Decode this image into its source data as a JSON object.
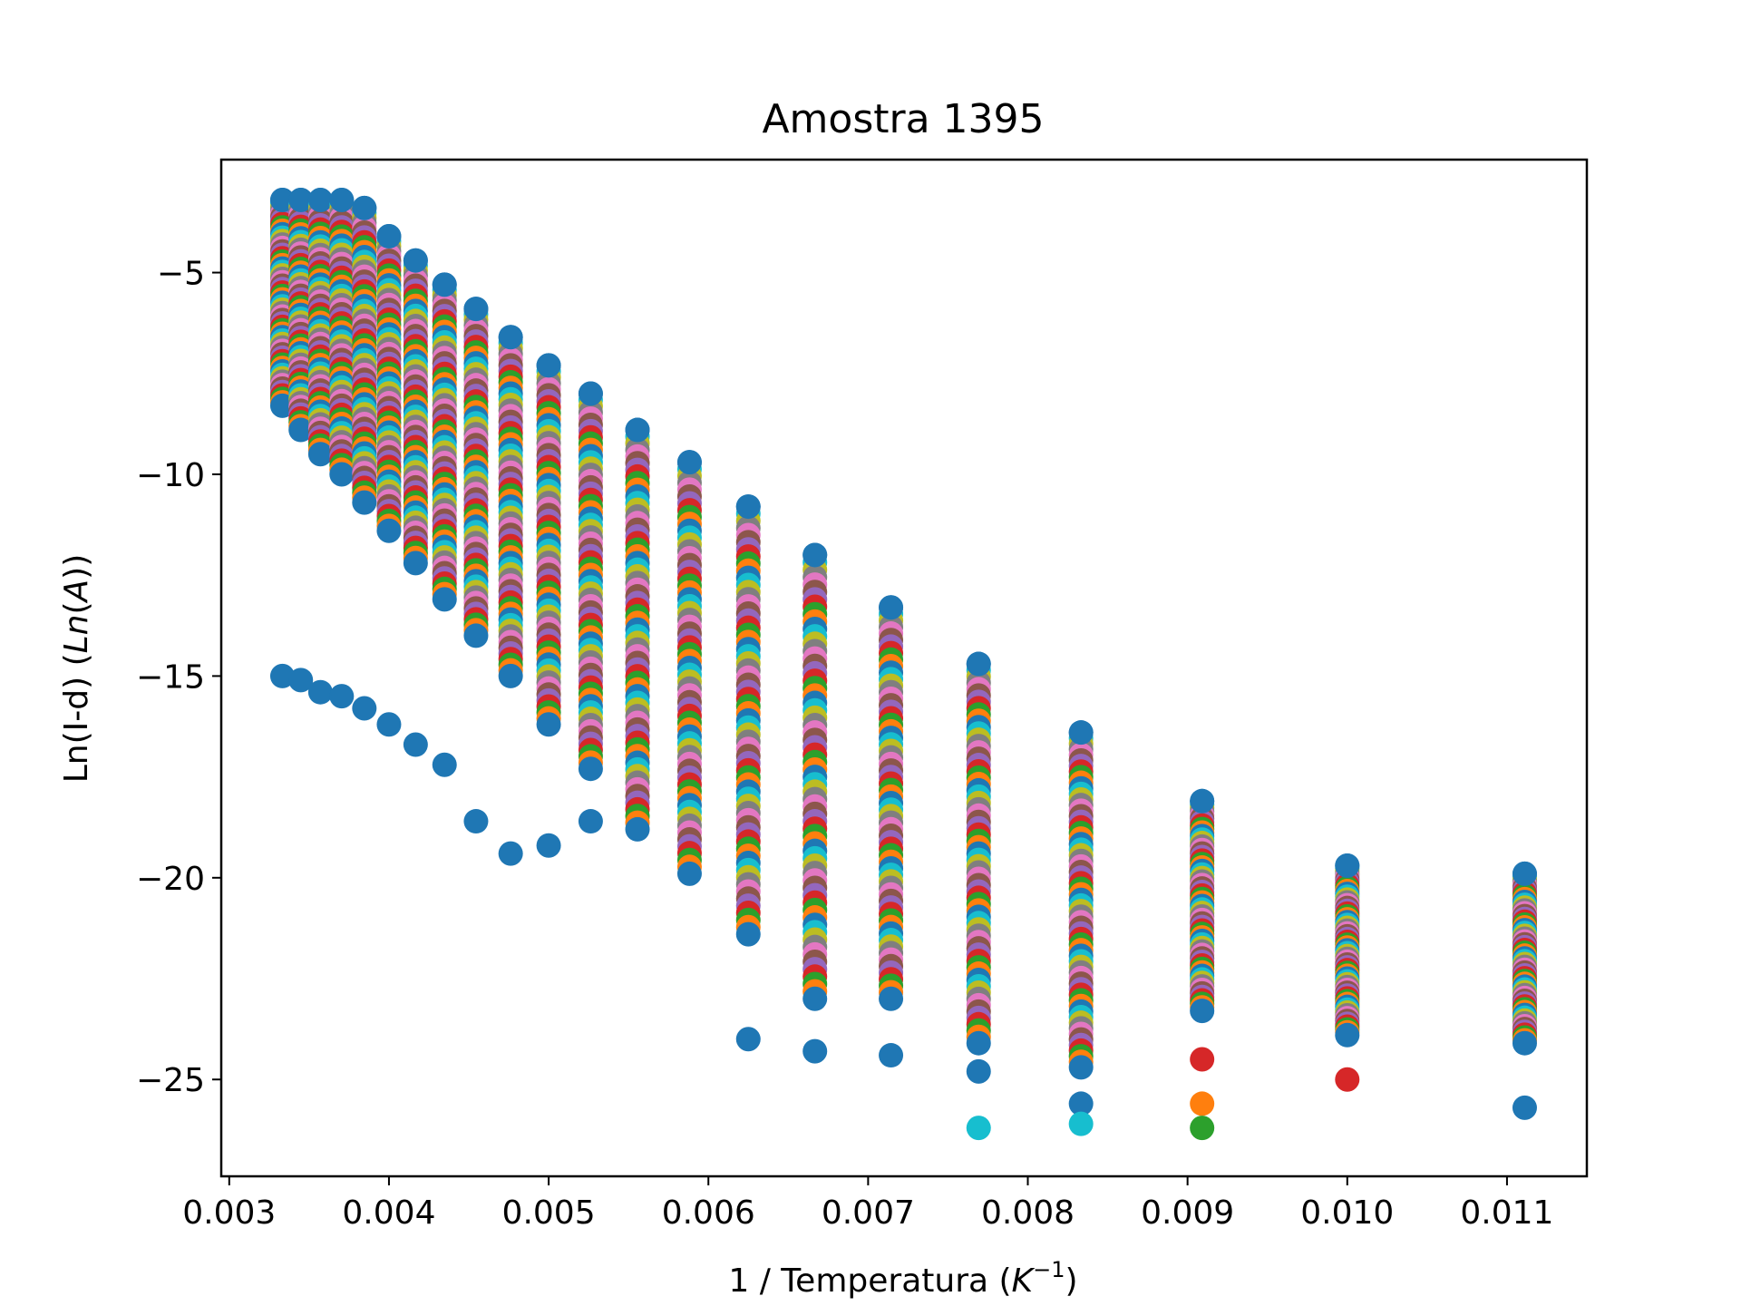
{
  "chart_data": {
    "type": "scatter",
    "title": "Amostra 1395",
    "xlabel": {
      "prefix": "1 / Temperatura (",
      "var": "K",
      "sup": "−1",
      "suffix": ")"
    },
    "ylabel": {
      "prefix": "Ln(I-d) (",
      "var": "Ln",
      "mid": "(",
      "var2": "A",
      "suffix": "))"
    },
    "xlim": [
      0.00295,
      0.0115
    ],
    "ylim": [
      -27.4,
      -2.2
    ],
    "xticks": [
      {
        "value": 0.003,
        "label": "0.003"
      },
      {
        "value": 0.004,
        "label": "0.004"
      },
      {
        "value": 0.005,
        "label": "0.005"
      },
      {
        "value": 0.006,
        "label": "0.006"
      },
      {
        "value": 0.007,
        "label": "0.007"
      },
      {
        "value": 0.008,
        "label": "0.008"
      },
      {
        "value": 0.009,
        "label": "0.009"
      },
      {
        "value": 0.01,
        "label": "0.010"
      },
      {
        "value": 0.011,
        "label": "0.011"
      }
    ],
    "yticks": [
      {
        "value": -5,
        "label": "−5"
      },
      {
        "value": -10,
        "label": "−10"
      },
      {
        "value": -15,
        "label": "−15"
      },
      {
        "value": -20,
        "label": "−20"
      },
      {
        "value": -25,
        "label": "−25"
      }
    ],
    "grid": false,
    "legend": "none",
    "colors": [
      "#1f77b4",
      "#ff7f0e",
      "#2ca02c",
      "#d62728",
      "#9467bd",
      "#8c564b",
      "#e377c2",
      "#7f7f7f",
      "#bcbd22",
      "#17becf"
    ],
    "columns": [
      {
        "x": 0.003333,
        "top": -3.2,
        "bottom": -8.3,
        "outliers": [
          {
            "y": -15.0,
            "color": "#1f77b4"
          }
        ]
      },
      {
        "x": 0.003448,
        "top": -3.2,
        "bottom": -8.9,
        "outliers": [
          {
            "y": -15.1,
            "color": "#1f77b4"
          }
        ]
      },
      {
        "x": 0.003571,
        "top": -3.2,
        "bottom": -9.5,
        "outliers": [
          {
            "y": -15.4,
            "color": "#1f77b4"
          }
        ]
      },
      {
        "x": 0.003704,
        "top": -3.2,
        "bottom": -10.0,
        "outliers": [
          {
            "y": -15.5,
            "color": "#1f77b4"
          }
        ]
      },
      {
        "x": 0.003846,
        "top": -3.4,
        "bottom": -10.7,
        "outliers": [
          {
            "y": -15.8,
            "color": "#1f77b4"
          }
        ]
      },
      {
        "x": 0.004,
        "top": -4.1,
        "bottom": -11.4,
        "outliers": [
          {
            "y": -16.2,
            "color": "#1f77b4"
          }
        ]
      },
      {
        "x": 0.004167,
        "top": -4.7,
        "bottom": -12.2,
        "outliers": [
          {
            "y": -16.7,
            "color": "#1f77b4"
          }
        ]
      },
      {
        "x": 0.004348,
        "top": -5.3,
        "bottom": -13.1,
        "outliers": [
          {
            "y": -17.2,
            "color": "#1f77b4"
          }
        ]
      },
      {
        "x": 0.004545,
        "top": -5.9,
        "bottom": -14.0,
        "outliers": [
          {
            "y": -18.6,
            "color": "#1f77b4"
          }
        ]
      },
      {
        "x": 0.004762,
        "top": -6.6,
        "bottom": -15.0,
        "outliers": [
          {
            "y": -19.4,
            "color": "#1f77b4"
          }
        ]
      },
      {
        "x": 0.005,
        "top": -7.3,
        "bottom": -16.2,
        "outliers": [
          {
            "y": -19.2,
            "color": "#1f77b4"
          }
        ]
      },
      {
        "x": 0.005263,
        "top": -8.0,
        "bottom": -17.3,
        "outliers": [
          {
            "y": -18.6,
            "color": "#1f77b4"
          }
        ]
      },
      {
        "x": 0.005556,
        "top": -8.9,
        "bottom": -18.8,
        "outliers": []
      },
      {
        "x": 0.005882,
        "top": -9.7,
        "bottom": -19.9,
        "outliers": []
      },
      {
        "x": 0.00625,
        "top": -10.8,
        "bottom": -21.4,
        "outliers": [
          {
            "y": -24.0,
            "color": "#1f77b4"
          }
        ]
      },
      {
        "x": 0.006667,
        "top": -12.0,
        "bottom": -23.0,
        "outliers": [
          {
            "y": -24.3,
            "color": "#1f77b4"
          }
        ]
      },
      {
        "x": 0.007143,
        "top": -13.3,
        "bottom": -23.0,
        "outliers": [
          {
            "y": -24.4,
            "color": "#1f77b4"
          }
        ]
      },
      {
        "x": 0.007692,
        "top": -14.7,
        "bottom": -24.1,
        "outliers": [
          {
            "y": -24.8,
            "color": "#1f77b4"
          },
          {
            "y": -26.2,
            "color": "#17becf"
          }
        ]
      },
      {
        "x": 0.008333,
        "top": -16.4,
        "bottom": -24.7,
        "outliers": [
          {
            "y": -25.6,
            "color": "#1f77b4"
          },
          {
            "y": -26.1,
            "color": "#17becf"
          }
        ]
      },
      {
        "x": 0.009091,
        "top": -18.1,
        "bottom": -23.3,
        "outliers": [
          {
            "y": -24.5,
            "color": "#d62728"
          },
          {
            "y": -25.6,
            "color": "#ff7f0e"
          },
          {
            "y": -26.2,
            "color": "#2ca02c"
          }
        ]
      },
      {
        "x": 0.01,
        "top": -19.7,
        "bottom": -23.9,
        "outliers": [
          {
            "y": -25.0,
            "color": "#d62728"
          }
        ]
      },
      {
        "x": 0.011111,
        "top": -19.9,
        "bottom": -24.1,
        "outliers": [
          {
            "y": -25.7,
            "color": "#1f77b4"
          }
        ]
      }
    ]
  }
}
